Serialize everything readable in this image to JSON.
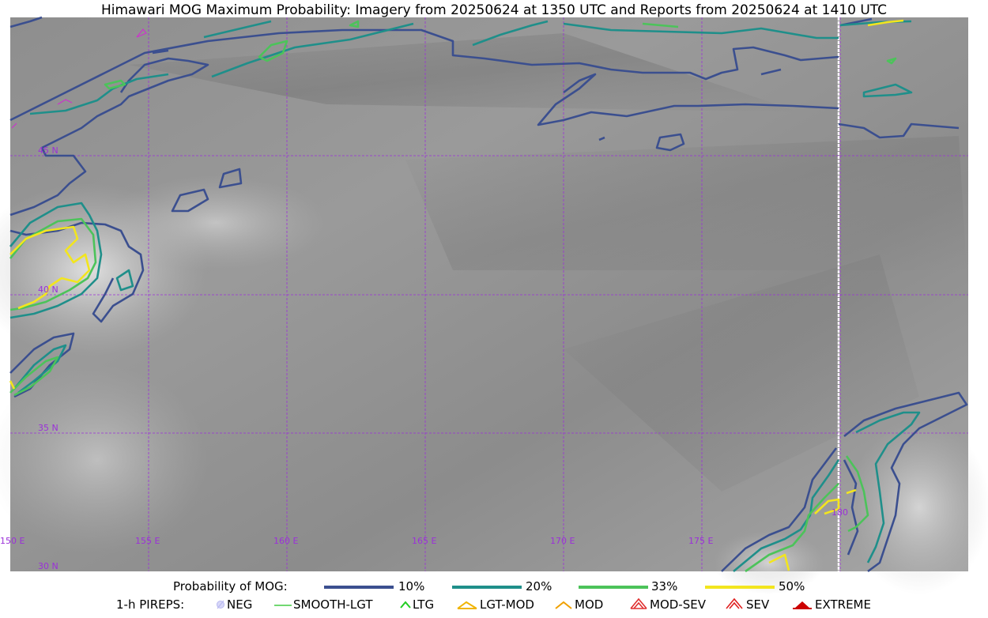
{
  "title": "Himawari MOG Maximum Probability: Imagery from 20250624 at 1350 UTC and Reports from 20250624 at 1410 UTC",
  "map": {
    "lat_labels": [
      "45 N",
      "40 N",
      "35 N",
      "30 N"
    ],
    "lon_labels": [
      "150 E",
      "155 E",
      "160 E",
      "165 E",
      "170 E",
      "175 E",
      "180"
    ],
    "grid_color": "#9b30d9",
    "contour_colors": {
      "p10": "#3b4f8f",
      "p20": "#1f8f8a",
      "p33": "#4cc35a",
      "p50": "#f2e51e"
    }
  },
  "legend": {
    "probability_label": "Probability of MOG:",
    "levels": [
      {
        "label": "10%",
        "color": "#3b4f8f"
      },
      {
        "label": "20%",
        "color": "#1f8f8a"
      },
      {
        "label": "33%",
        "color": "#4cc35a"
      },
      {
        "label": "50%",
        "color": "#f2e51e"
      }
    ],
    "pireps_label": "1-h PIREPS:",
    "pireps": [
      {
        "label": "NEG",
        "icon": "neg-pirep-icon",
        "color": "#b8b8f0"
      },
      {
        "label": "SMOOTH-LGT",
        "icon": "smooth-lgt-pirep-icon",
        "color": "#44cc44"
      },
      {
        "label": "LTG",
        "icon": "ltg-pirep-icon",
        "color": "#22cc22"
      },
      {
        "label": "LGT-MOD",
        "icon": "lgt-mod-pirep-icon",
        "color": "#f0b400"
      },
      {
        "label": "MOD",
        "icon": "mod-pirep-icon",
        "color": "#f0a000"
      },
      {
        "label": "MOD-SEV",
        "icon": "mod-sev-pirep-icon",
        "color": "#e03030"
      },
      {
        "label": "SEV",
        "icon": "sev-pirep-icon",
        "color": "#e02020"
      },
      {
        "label": "EXTREME",
        "icon": "extreme-pirep-icon",
        "color": "#cc0000"
      }
    ]
  }
}
